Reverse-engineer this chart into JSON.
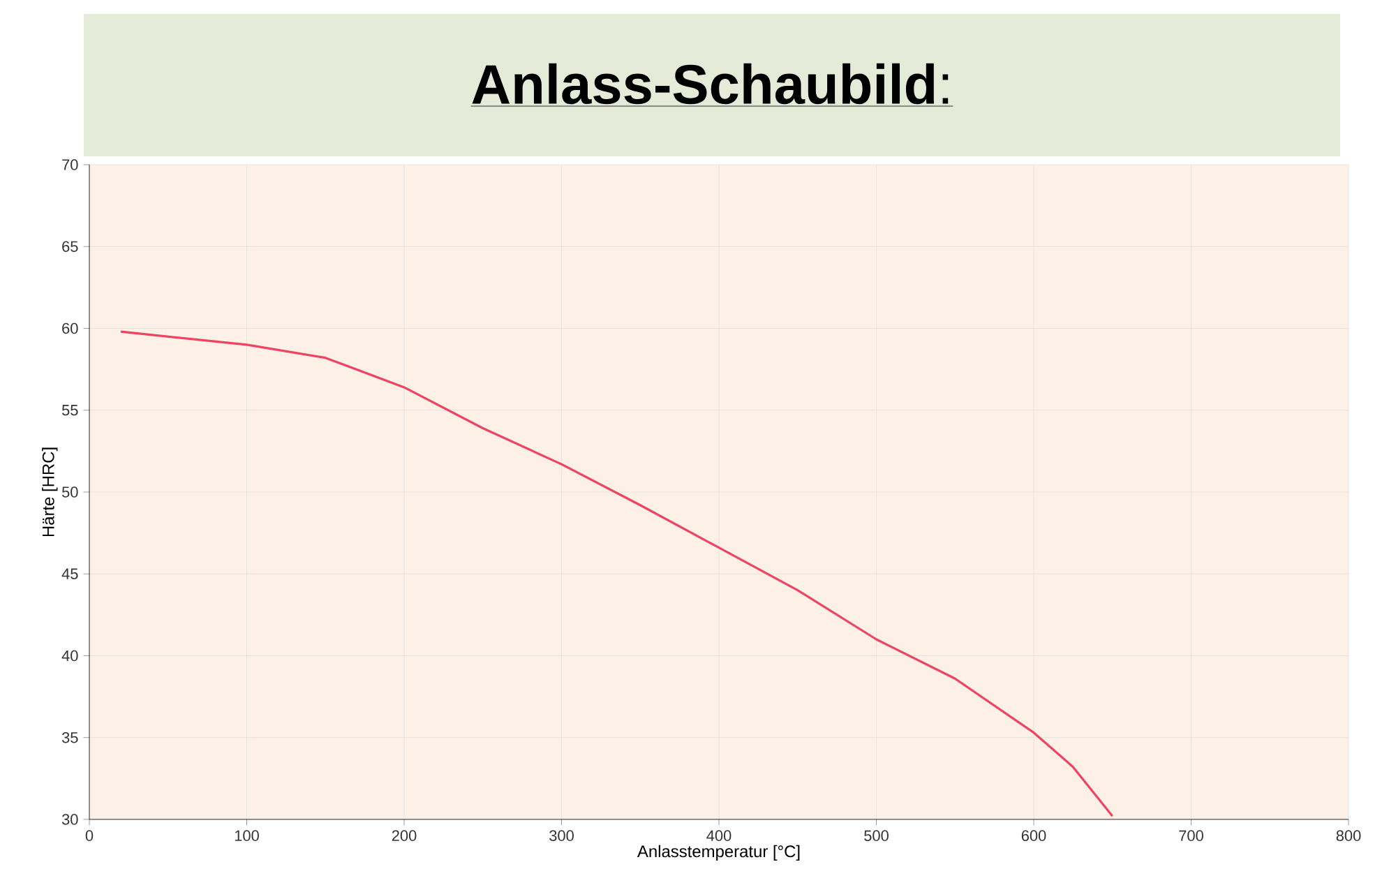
{
  "chart_data": {
    "type": "line",
    "title": "**Anlass-Schaubild**:",
    "xlabel": "Anlasstemperatur [°C]",
    "ylabel": "Härte [HRC]",
    "x": [
      20,
      100,
      150,
      200,
      250,
      300,
      350,
      400,
      450,
      500,
      550,
      600,
      625,
      650
    ],
    "series": [
      {
        "color": "#ee4462",
        "values": [
          59.8,
          59.0,
          58.2,
          56.4,
          53.9,
          51.7,
          49.2,
          46.6,
          44.0,
          41.0,
          38.6,
          35.3,
          33.2,
          30.2
        ]
      }
    ],
    "xlim": [
      0,
      800
    ],
    "ylim": [
      30,
      70
    ],
    "xticks": [
      0,
      100,
      200,
      300,
      400,
      500,
      600,
      700,
      800
    ],
    "yticks": [
      30,
      35,
      40,
      45,
      50,
      55,
      60,
      65,
      70
    ],
    "grid": true,
    "marker": "none",
    "line_style": "solid"
  }
}
